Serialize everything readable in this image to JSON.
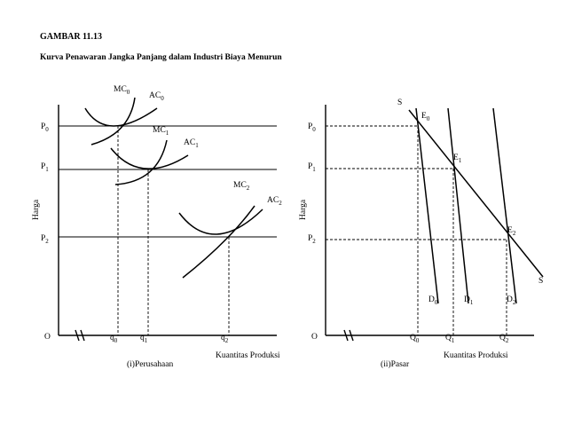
{
  "figure": {
    "title": "GAMBAR 11.13",
    "subtitle": "Kurva Penawaran Jangka Panjang dalam Industri Biaya Menurun"
  },
  "left_panel": {
    "caption": "(i)Perusahaan",
    "x_axis_label": "Kuantitas Produksi",
    "y_axis_label": "Harga",
    "origin": "O",
    "price_levels": [
      {
        "base": "P",
        "sub": "0"
      },
      {
        "base": "P",
        "sub": "1"
      },
      {
        "base": "P",
        "sub": "2"
      }
    ],
    "quantities": [
      {
        "base": "q",
        "sub": "0"
      },
      {
        "base": "q",
        "sub": "1"
      },
      {
        "base": "q",
        "sub": "2"
      }
    ],
    "curves": [
      {
        "base": "MC",
        "sub": "0"
      },
      {
        "base": "AC",
        "sub": "0"
      },
      {
        "base": "MC",
        "sub": "1"
      },
      {
        "base": "AC",
        "sub": "1"
      },
      {
        "base": "MC",
        "sub": "2"
      },
      {
        "base": "AC",
        "sub": "2"
      }
    ]
  },
  "right_panel": {
    "caption": "(ii)Pasar",
    "x_axis_label": "Kuantitas Produksi",
    "y_axis_label": "Harga",
    "origin": "O",
    "price_levels": [
      {
        "base": "P",
        "sub": "0"
      },
      {
        "base": "P",
        "sub": "1"
      },
      {
        "base": "P",
        "sub": "2"
      }
    ],
    "quantities": [
      {
        "base": "Q",
        "sub": "0"
      },
      {
        "base": "Q",
        "sub": "1"
      },
      {
        "base": "Q",
        "sub": "2"
      }
    ],
    "supply_label": "S",
    "equilibria": [
      {
        "base": "E",
        "sub": "0"
      },
      {
        "base": "E",
        "sub": "1"
      },
      {
        "base": "E",
        "sub": "2"
      }
    ],
    "demand_curves": [
      {
        "base": "D",
        "sub": "0"
      },
      {
        "base": "D",
        "sub": "1"
      },
      {
        "base": "D",
        "sub": "2"
      }
    ]
  }
}
